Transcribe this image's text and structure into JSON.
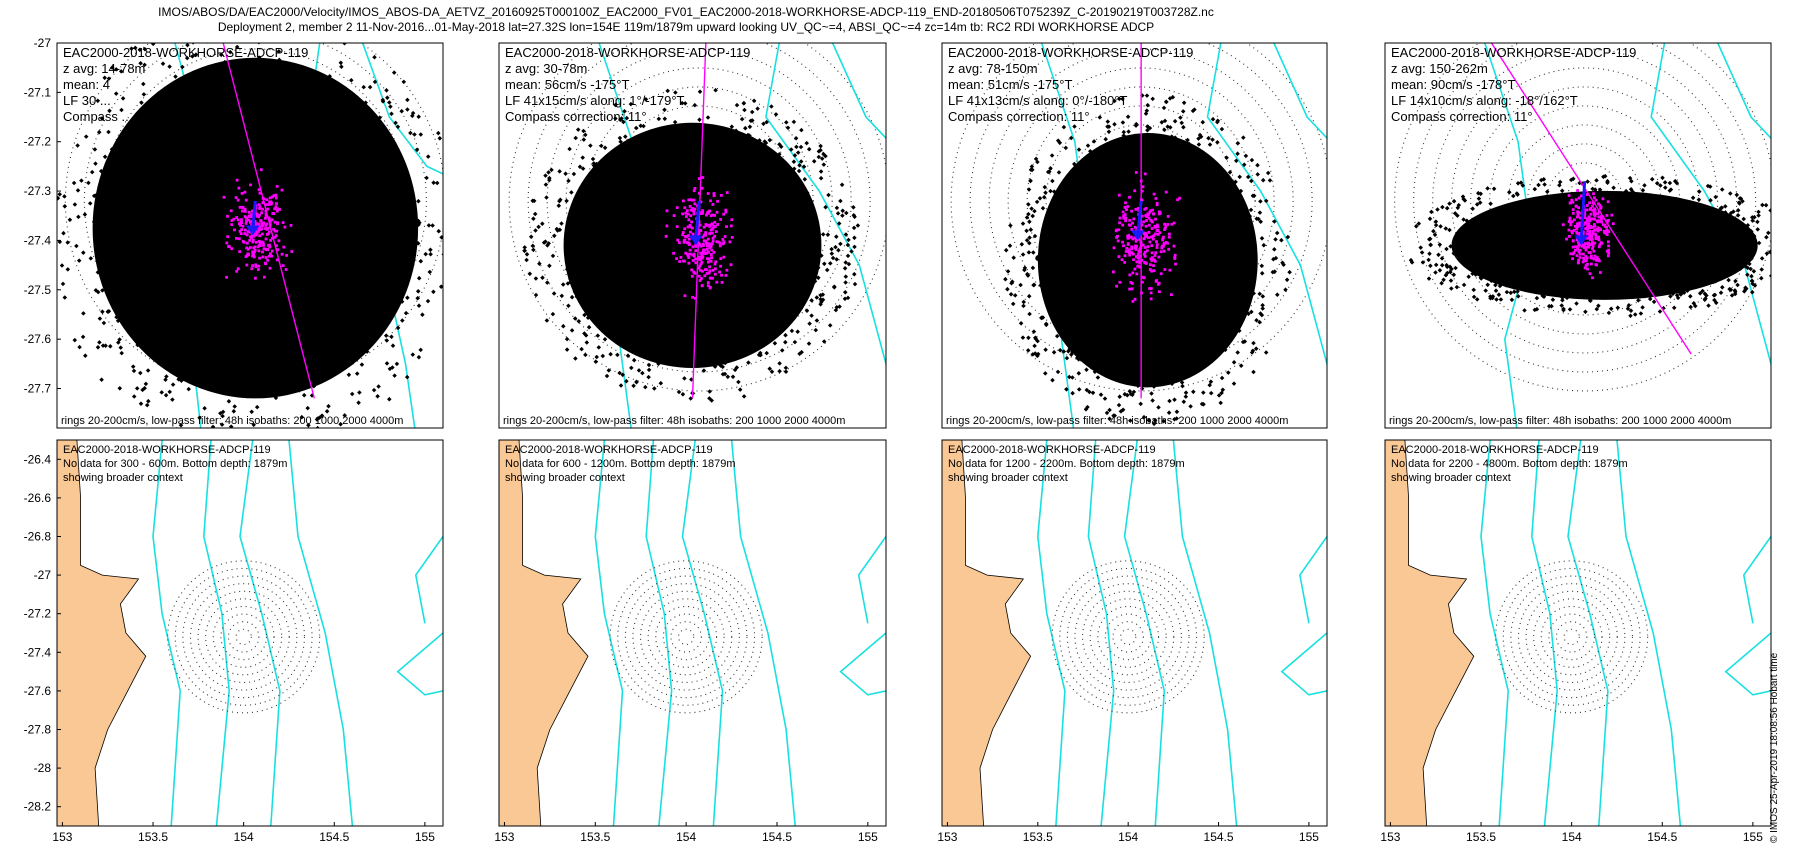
{
  "header": {
    "line1": "IMOS/ABOS/DA/EAC2000/Velocity/IMOS_ABOS-DA_AETVZ_20160925T000100Z_EAC2000_FV01_EAC2000-2018-WORKHORSE-ADCP-119_END-20180506T075239Z_C-20190219T003728Z.nc",
    "line2": "Deployment 2, member 2 11-Nov-2016...01-May-2018 lat=27.32S lon=154E 119m/1879m upward looking UV_QC~=4, ABSI_QC~=4 zc=14m tb: RC2 RDI WORKHORSE ADCP"
  },
  "footer": "© IMOS 25-Apr-2019 18:08:56 Hobart time",
  "colors": {
    "scatter": "#000000",
    "lowpass": "#ff00ff",
    "mean_arrow": "#1a1aff",
    "isobath": "#19e0e0",
    "land": "#f9c894"
  },
  "top_panels": [
    {
      "instrument": "EAC2000-2018-WORKHORSE-ADCP-119",
      "zavg": "z avg: 14-78m",
      "mean": "mean: 4",
      "lf": "LF 30 ...",
      "compass": "Compass ...",
      "footer": "rings 20-200cm/s, low-pass filter: 48h isobaths: 200 1000 2000 4000m"
    },
    {
      "instrument": "EAC2000-2018-WORKHORSE-ADCP-119",
      "zavg": "z avg: 30-78m",
      "mean": "mean: 56cm/s -175°T",
      "lf": "LF 41x15cm/s along: 1°/-179°T",
      "compass": "Compass correction: 11°",
      "footer": "rings 20-200cm/s, low-pass filter: 48h isobaths: 200 1000 2000 4000m"
    },
    {
      "instrument": "EAC2000-2018-WORKHORSE-ADCP-119",
      "zavg": "z avg: 78-150m",
      "mean": "mean: 51cm/s -175°T",
      "lf": "LF 41x13cm/s along: 0°/-180°T",
      "compass": "Compass correction: 11°",
      "footer": "rings 20-200cm/s, low-pass filter: 48h isobaths: 200 1000 2000 4000m"
    },
    {
      "instrument": "EAC2000-2018-WORKHORSE-ADCP-119",
      "zavg": "z avg: 150-262m",
      "mean": "mean: 90cm/s -178°T",
      "lf": "LF 14x10cm/s along: -18°/162°T",
      "compass": "Compass correction: 11°",
      "footer": "rings 20-200cm/s, low-pass filter: 48h isobaths: 200 1000 2000 4000m"
    }
  ],
  "bottom_panels": [
    {
      "instrument": "EAC2000-2018-WORKHORSE-ADCP-119",
      "nodata": "No data for 300 - 600m. Bottom depth: 1879m",
      "context": "showing broader context"
    },
    {
      "instrument": "EAC2000-2018-WORKHORSE-ADCP-119",
      "nodata": "No data for 600 - 1200m. Bottom depth: 1879m",
      "context": "showing broader context"
    },
    {
      "instrument": "EAC2000-2018-WORKHORSE-ADCP-119",
      "nodata": "No data for 1200 - 2200m. Bottom depth: 1879m",
      "context": "showing broader context"
    },
    {
      "instrument": "EAC2000-2018-WORKHORSE-ADCP-119",
      "nodata": "No data for 2200 - 4800m. Bottom depth: 1879m",
      "context": "showing broader context"
    }
  ],
  "chart_data": [
    {
      "type": "scatter",
      "title": "z avg: 14-78m",
      "xlabel": "",
      "ylabel": "",
      "ylim": [
        -27.78,
        -27.0
      ],
      "y_ticks": [
        -27,
        -27.1,
        -27.2,
        -27.3,
        -27.4,
        -27.5,
        -27.6,
        -27.7
      ],
      "y_tick_labels": [
        "-27",
        "-27.1",
        "-27.2",
        "-27.3",
        "-27.4",
        "-27.5",
        "-27.6",
        "-27.7"
      ],
      "x_ticks": [],
      "mooring": [
        154.0,
        -27.32
      ],
      "scatter_extent": {
        "lon": [
          153.67,
          154.33
        ],
        "lat": [
          -27.75,
          -27.0
        ]
      },
      "lowpass_extent": {
        "lon": [
          153.95,
          154.06
        ],
        "lat": [
          -27.47,
          -27.28
        ]
      },
      "mean_arrow": {
        "from": [
          154.0,
          -27.32
        ],
        "to": [
          153.995,
          -27.39
        ]
      },
      "principal_axis": {
        "from": [
          153.94,
          -27.0
        ],
        "to": [
          154.11,
          -27.72
        ]
      }
    },
    {
      "type": "scatter",
      "title": "z avg: 30-78m",
      "ylim": [
        -27.78,
        -27.0
      ],
      "mooring": [
        154.0,
        -27.32
      ],
      "scatter_extent": {
        "lon": [
          153.78,
          154.2
        ],
        "lat": [
          -27.68,
          -27.14
        ]
      },
      "lowpass_extent": {
        "lon": [
          153.96,
          154.05
        ],
        "lat": [
          -27.52,
          -27.28
        ]
      },
      "mean_arrow": {
        "from": [
          154.0,
          -27.32
        ],
        "to": [
          153.995,
          -27.41
        ]
      },
      "principal_axis": {
        "from": [
          154.01,
          -27.0
        ],
        "to": [
          153.99,
          -27.72
        ]
      }
    },
    {
      "type": "scatter",
      "title": "z avg: 78-150m",
      "ylim": [
        -27.78,
        -27.0
      ],
      "mooring": [
        154.0,
        -27.32
      ],
      "scatter_extent": {
        "lon": [
          153.83,
          154.19
        ],
        "lat": [
          -27.72,
          -27.16
        ]
      },
      "lowpass_extent": {
        "lon": [
          153.96,
          154.05
        ],
        "lat": [
          -27.52,
          -27.28
        ]
      },
      "mean_arrow": {
        "from": [
          154.0,
          -27.32
        ],
        "to": [
          153.995,
          -27.4
        ]
      },
      "principal_axis": {
        "from": [
          154.0,
          -27.0
        ],
        "to": [
          154.0,
          -27.72
        ]
      }
    },
    {
      "type": "scatter",
      "title": "z avg: 150-262m",
      "ylim": [
        -27.78,
        -27.0
      ],
      "mooring": [
        154.0,
        -27.32
      ],
      "scatter_extent": {
        "lon": [
          153.78,
          154.28
        ],
        "lat": [
          -27.53,
          -27.29
        ]
      },
      "lowpass_extent": {
        "lon": [
          153.97,
          154.04
        ],
        "lat": [
          -27.46,
          -27.3
        ]
      },
      "mean_arrow": {
        "from": [
          154.0,
          -27.28
        ],
        "to": [
          153.995,
          -27.41
        ]
      },
      "principal_axis": {
        "from": [
          153.86,
          -27.0
        ],
        "to": [
          154.16,
          -27.63
        ]
      }
    },
    {
      "type": "scatter",
      "title": "No data for 300 - 600m. Bottom depth: 1879m",
      "xlim": [
        152.97,
        155.1
      ],
      "ylim": [
        -28.3,
        -26.3
      ],
      "x_ticks": [
        153,
        153.5,
        154,
        154.5,
        155
      ],
      "x_tick_labels": [
        "153",
        "153.5",
        "154",
        "154.5",
        "155"
      ],
      "y_ticks": [
        -26.4,
        -26.6,
        -26.8,
        -27,
        -27.2,
        -27.4,
        -27.6,
        -27.8,
        -28,
        -28.2
      ],
      "y_tick_labels": [
        "-26.4",
        "-26.6",
        "-26.8",
        "-27",
        "-27.2",
        "-27.4",
        "-27.6",
        "-27.8",
        "-28",
        "-28.2"
      ],
      "mooring": [
        154.0,
        -27.32
      ]
    },
    {
      "type": "scatter",
      "title": "No data for 600 - 1200m. Bottom depth: 1879m",
      "xlim": [
        152.97,
        155.1
      ],
      "ylim": [
        -28.3,
        -26.3
      ]
    },
    {
      "type": "scatter",
      "title": "No data for 1200 - 2200m. Bottom depth: 1879m",
      "xlim": [
        152.97,
        155.1
      ],
      "ylim": [
        -28.3,
        -26.3
      ]
    },
    {
      "type": "scatter",
      "title": "No data for 2200 - 4800m. Bottom depth: 1879m",
      "xlim": [
        152.97,
        155.1
      ],
      "ylim": [
        -28.3,
        -26.3
      ]
    }
  ]
}
